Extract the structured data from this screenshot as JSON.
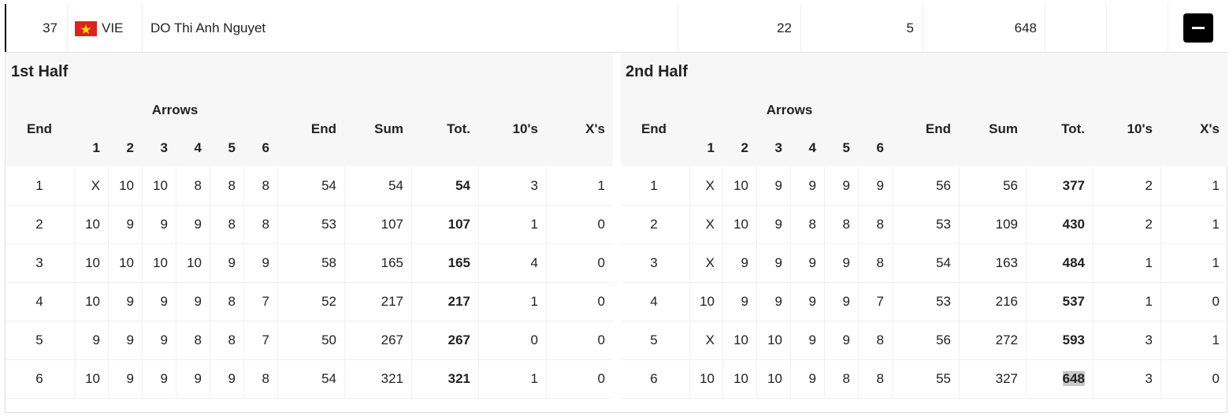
{
  "athlete": {
    "rank": 37,
    "country": "VIE",
    "name": "DO Thi Anh Nguyet",
    "tens": 22,
    "xs": 5,
    "total": 648
  },
  "halves": [
    {
      "title": "1st Half",
      "headers": {
        "end": "End",
        "arrows": "Arrows",
        "arrow_numbers": [
          1,
          2,
          3,
          4,
          5,
          6
        ],
        "end_score": "End",
        "sum": "Sum",
        "total": "Tot.",
        "tens": "10's",
        "xs": "X's"
      },
      "rows": [
        [
          1,
          "X",
          10,
          10,
          8,
          8,
          8,
          54,
          54,
          54,
          3,
          1
        ],
        [
          2,
          10,
          9,
          9,
          9,
          8,
          8,
          53,
          107,
          107,
          1,
          0
        ],
        [
          3,
          10,
          10,
          10,
          10,
          9,
          9,
          58,
          165,
          165,
          4,
          0
        ],
        [
          4,
          10,
          9,
          9,
          9,
          8,
          7,
          52,
          217,
          217,
          1,
          0
        ],
        [
          5,
          9,
          9,
          9,
          8,
          8,
          7,
          50,
          267,
          267,
          0,
          0
        ],
        [
          6,
          10,
          9,
          9,
          9,
          9,
          8,
          54,
          321,
          321,
          1,
          0
        ]
      ]
    },
    {
      "title": "2nd Half",
      "headers": {
        "end": "End",
        "arrows": "Arrows",
        "arrow_numbers": [
          1,
          2,
          3,
          4,
          5,
          6
        ],
        "end_score": "End",
        "sum": "Sum",
        "total": "Tot.",
        "tens": "10's",
        "xs": "X's"
      },
      "rows": [
        [
          1,
          "X",
          10,
          9,
          9,
          9,
          9,
          56,
          56,
          377,
          2,
          1
        ],
        [
          2,
          "X",
          10,
          9,
          8,
          8,
          8,
          53,
          109,
          430,
          2,
          1
        ],
        [
          3,
          "X",
          9,
          9,
          9,
          9,
          8,
          54,
          163,
          484,
          1,
          1
        ],
        [
          4,
          10,
          9,
          9,
          9,
          9,
          7,
          53,
          216,
          537,
          1,
          0
        ],
        [
          5,
          "X",
          10,
          10,
          9,
          9,
          8,
          56,
          272,
          593,
          3,
          1
        ],
        [
          6,
          10,
          10,
          10,
          9,
          8,
          8,
          55,
          327,
          648,
          3,
          0
        ]
      ]
    }
  ]
}
